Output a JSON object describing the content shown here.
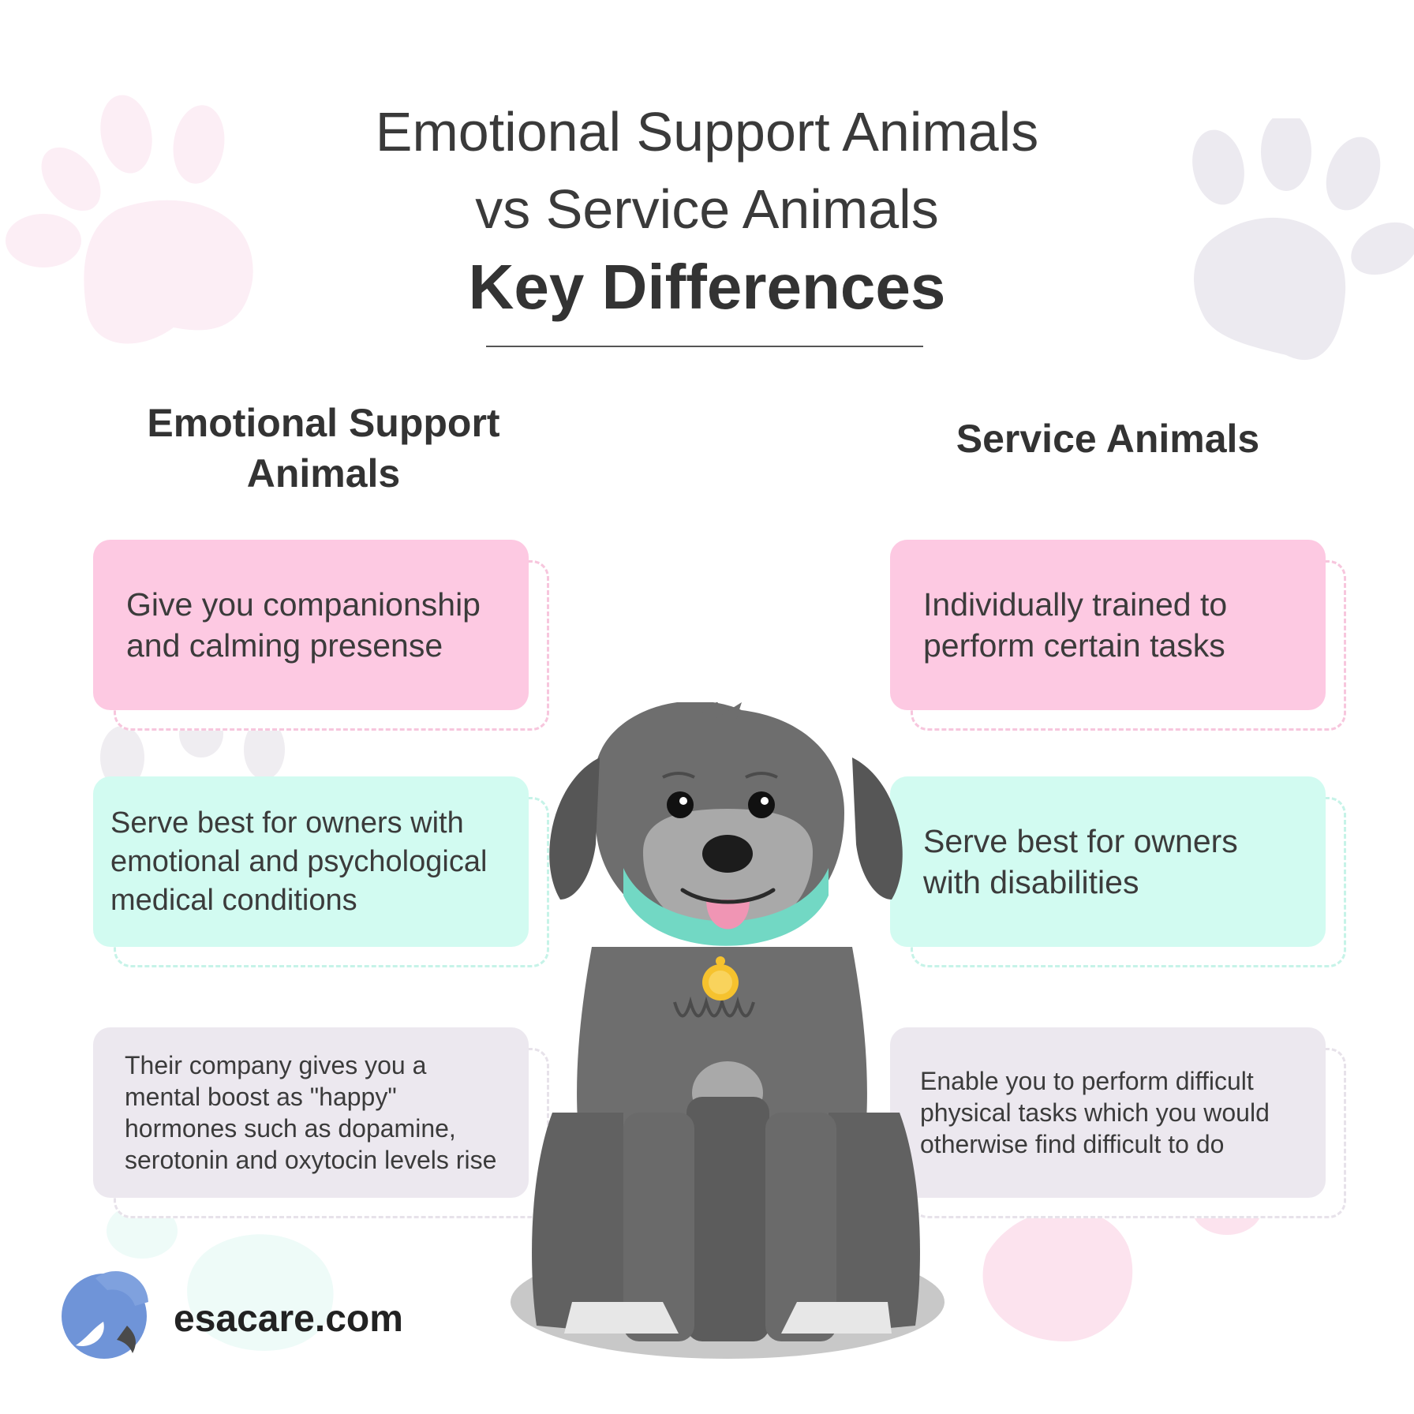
{
  "header": {
    "title_line1": "Emotional Support Animals",
    "title_line2": "vs Service Animals",
    "title_bold": "Key Differences"
  },
  "columns": {
    "left_heading_line1": "Emotional Support",
    "left_heading_line2": "Animals",
    "right_heading": "Service Animals"
  },
  "esa_cards": [
    {
      "line1": "Give you companionship",
      "line2": "and calming presense"
    },
    {
      "line1": "Serve best for owners with",
      "line2": "emotional and psychological",
      "line3": "medical conditions"
    },
    {
      "line1": "Their company gives you a",
      "line2": "mental boost as \"happy\"",
      "line3": "hormones such as dopamine,",
      "line4": "serotonin and oxytocin levels rise"
    }
  ],
  "service_cards": [
    {
      "line1": "Individually trained to",
      "line2": "perform certain tasks"
    },
    {
      "line1": "Serve best for owners",
      "line2": "with disabilities"
    },
    {
      "line1": "Enable you to perform difficult",
      "line2": "physical tasks which you would",
      "line3": "otherwise find difficult to do"
    }
  ],
  "footer": {
    "brand": "esacare.com",
    "logo_icon": "esacare-logo-icon"
  },
  "illustration": {
    "icon": "dog-illustration-icon"
  },
  "colors": {
    "card_pink": "#fdc9e2",
    "card_mint": "#d2fbf1",
    "card_lavender": "#ece8ef",
    "dog_gray": "#6f6f6f",
    "collar": "#72d8c4",
    "tag": "#f6c22e",
    "logo_blue": "#6f94d8"
  }
}
